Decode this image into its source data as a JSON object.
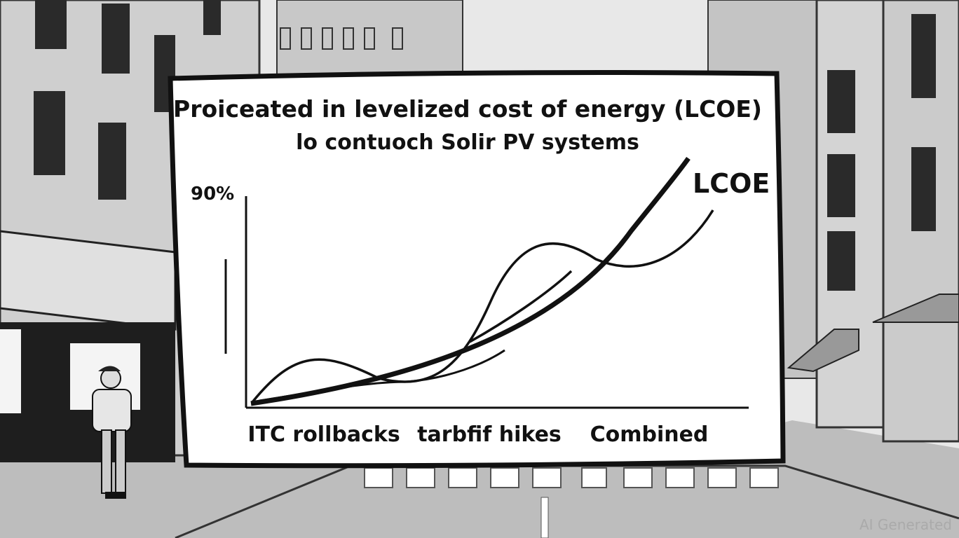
{
  "sign": {
    "title_line_1": "Proiceated in levelized cost of energy (LCOE)",
    "title_line_2": "lo contuoch Solir PV systems",
    "y_label": "90%",
    "curve_label": "LCOE",
    "categories": [
      "ITC rollbacks",
      "tarbfif hikes",
      "Combined"
    ]
  },
  "watermark": "AI Generated"
}
